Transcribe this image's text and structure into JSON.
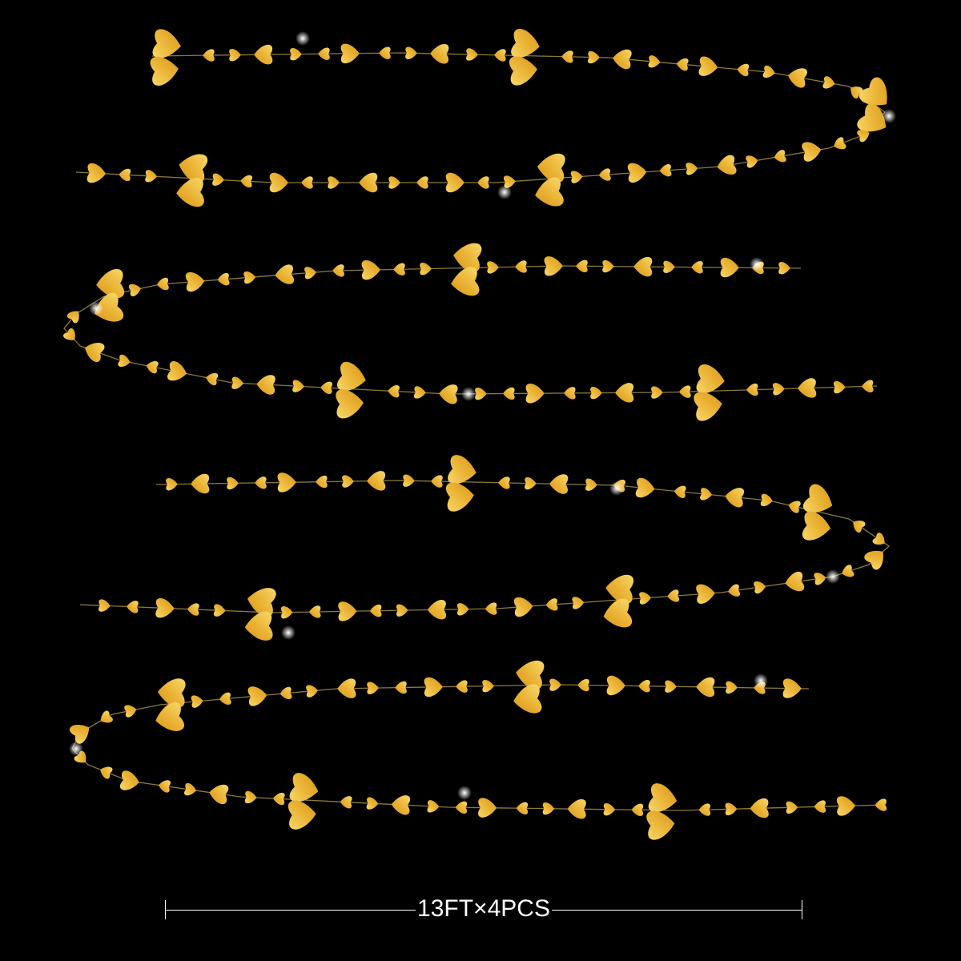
{
  "product_label": "13FT×4PCS",
  "colors": {
    "background": "#000000",
    "heart_light": "#f8d86a",
    "heart_dark": "#d9961a",
    "thread": "#8c7a3c",
    "label": "#ffffff"
  },
  "garland_strands": 4,
  "heart_icon": "heart-icon"
}
